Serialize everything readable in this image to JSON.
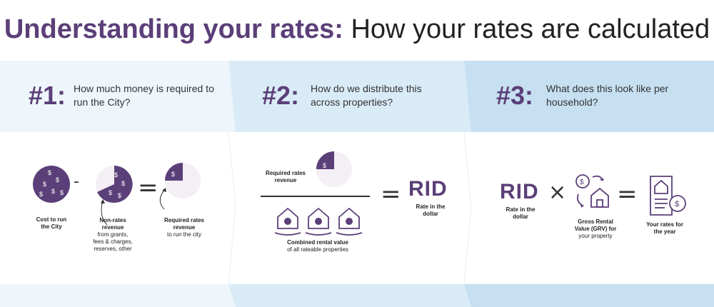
{
  "title": {
    "bold": "Understanding your rates:",
    "rest": "How your rates are calculated"
  },
  "steps": [
    {
      "number": "#1:",
      "question_line1": "How much money is required to",
      "question_line2": "run the City?"
    },
    {
      "number": "#2:",
      "question_line1": "How do we distribute this",
      "question_line2": "across properties?"
    },
    {
      "number": "#3:",
      "question_line1": "What does this look like per",
      "question_line2": "household?"
    }
  ],
  "step1": {
    "cost": {
      "line1": "Cost to run",
      "line2": "the City"
    },
    "nonrates": {
      "line1": "Non-rates",
      "line2": "revenue",
      "sub1": "from grants,",
      "sub2": "fees & charges,",
      "sub3": "reserves, other"
    },
    "required": {
      "line1": "Required rates",
      "line2": "revenue",
      "sub1": "to run the city"
    },
    "minus": "-",
    "equals": "="
  },
  "step2": {
    "required": {
      "line1": "Required rates",
      "line2": "revenue"
    },
    "combined": {
      "line1": "Combined rental value",
      "sub1": "of all rateable properties"
    },
    "equals": "=",
    "rid": "RID",
    "rid_label": {
      "line1": "Rate in the",
      "line2": "dollar"
    }
  },
  "step3": {
    "rid": "RID",
    "rid_label": {
      "line1": "Rate in the",
      "line2": "dollar"
    },
    "times": "×",
    "grv": {
      "line1": "Gross Rental",
      "line2": "Value (GRV) for",
      "sub1": "your property"
    },
    "equals": "=",
    "result": {
      "line1": "Your rates for",
      "line2": "the year"
    }
  },
  "dollar_symbol": "$",
  "colors": {
    "purple": "#5b3f78",
    "light_purple": "#f3eff5",
    "band1": "#eef6fb",
    "band2": "#d6e9f6",
    "band3": "#c4def1"
  }
}
